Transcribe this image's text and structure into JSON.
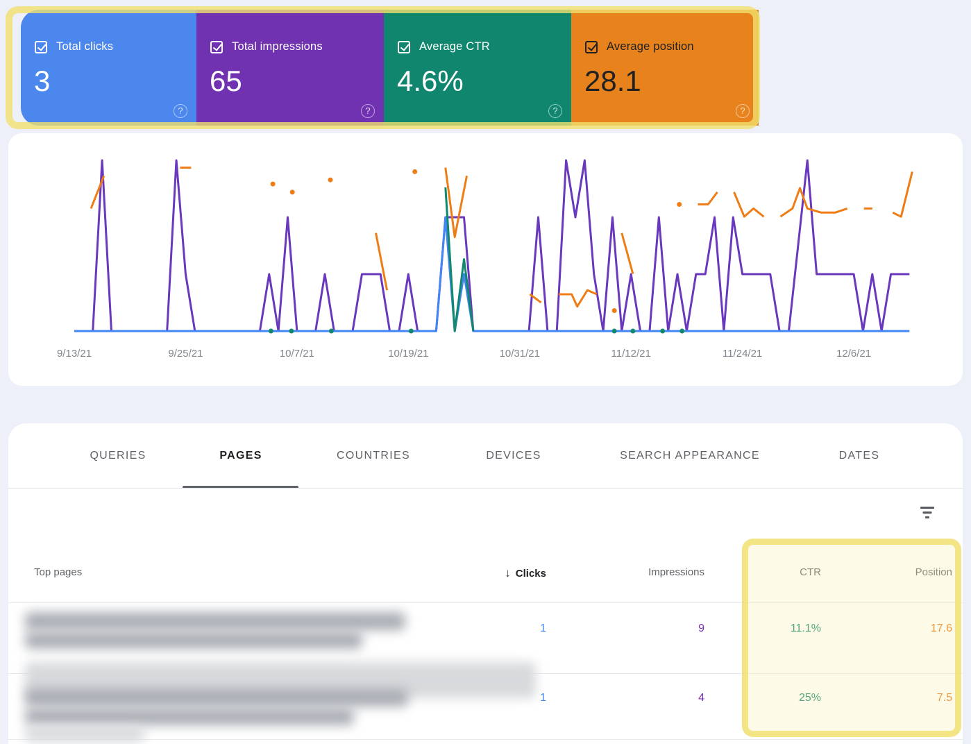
{
  "page": {
    "background": "#edeff9",
    "app": "Search Console performance report"
  },
  "icons": {
    "help_glyph": "?",
    "sort_desc_glyph": "↓"
  },
  "metric_cards": [
    {
      "label": "Total clicks",
      "value": "3",
      "color": "#4b87ec",
      "text_color": "#ffffff",
      "checked": true
    },
    {
      "label": "Total impressions",
      "value": "65",
      "color": "#7132b1",
      "text_color": "#ffffff",
      "checked": true
    },
    {
      "label": "Average CTR",
      "value": "4.6%",
      "color": "#11866f",
      "text_color": "#ffffff",
      "checked": true
    },
    {
      "label": "Average position",
      "value": "28.1",
      "color": "#e8821c",
      "text_color": "#202124",
      "checked": true
    }
  ],
  "chart_data": {
    "type": "line",
    "start_date": "9/13/21",
    "end_date": "12/12/21",
    "x_axis": {
      "tick_labels": [
        "9/13/21",
        "9/25/21",
        "10/7/21",
        "10/19/21",
        "10/31/21",
        "11/12/21",
        "11/24/21",
        "12/6/21"
      ],
      "tick_days": [
        0,
        12,
        24,
        36,
        48,
        60,
        72,
        84
      ],
      "label_color": "#80868b"
    },
    "y_axis": {
      "visible": false,
      "counts_max": 3.16,
      "ctr_max_percent": 129,
      "position_axis_inverted": true,
      "position_range": [
        1,
        45
      ]
    },
    "grid": false,
    "legend": "none",
    "series": [
      {
        "name": "Impressions",
        "color": "#6a38bd",
        "total_shown": 65,
        "points": [
          [
            0,
            0
          ],
          [
            2,
            0
          ],
          [
            3,
            3
          ],
          [
            4,
            0
          ],
          [
            10,
            0
          ],
          [
            11,
            3
          ],
          [
            12,
            1
          ],
          [
            13,
            0
          ],
          [
            20,
            0
          ],
          [
            21,
            1
          ],
          [
            22,
            0
          ],
          [
            23,
            2
          ],
          [
            24,
            0
          ],
          [
            26,
            0
          ],
          [
            27,
            1
          ],
          [
            28,
            0
          ],
          [
            30,
            0
          ],
          [
            31,
            1
          ],
          [
            33,
            1
          ],
          [
            34,
            0
          ],
          [
            35,
            0
          ],
          [
            36,
            1
          ],
          [
            37,
            0
          ],
          [
            39,
            0
          ],
          [
            40,
            2
          ],
          [
            42,
            2
          ],
          [
            43,
            0
          ],
          [
            49,
            0
          ],
          [
            50,
            2
          ],
          [
            51,
            0
          ],
          [
            52,
            0
          ],
          [
            53,
            3
          ],
          [
            54,
            2
          ],
          [
            55,
            3
          ],
          [
            56,
            1
          ],
          [
            57,
            0
          ],
          [
            58,
            2
          ],
          [
            59,
            0
          ],
          [
            60,
            1
          ],
          [
            61,
            0
          ],
          [
            62,
            0
          ],
          [
            63,
            2
          ],
          [
            64,
            0
          ],
          [
            65,
            1
          ],
          [
            66,
            0
          ],
          [
            67,
            1
          ],
          [
            68,
            1
          ],
          [
            69,
            2
          ],
          [
            70,
            0
          ],
          [
            71,
            2
          ],
          [
            72,
            1
          ],
          [
            75,
            1
          ],
          [
            76,
            0
          ],
          [
            77,
            0
          ],
          [
            79,
            3
          ],
          [
            80,
            1
          ],
          [
            84,
            1
          ],
          [
            85,
            0
          ],
          [
            86,
            1
          ],
          [
            87,
            0
          ],
          [
            88,
            1
          ],
          [
            90,
            1
          ]
        ]
      },
      {
        "name": "Clicks",
        "color": "#4285f4",
        "total_shown": 3,
        "points": [
          [
            0,
            0
          ],
          [
            39,
            0
          ],
          [
            40,
            2
          ],
          [
            41,
            0
          ],
          [
            42,
            1
          ],
          [
            43,
            0
          ],
          [
            90,
            0
          ]
        ]
      },
      {
        "name": "CTR",
        "color": "#12896f",
        "unit": "%",
        "average_shown": "4.6%",
        "segments": [
          [
            [
              40,
              100
            ],
            [
              41,
              0
            ],
            [
              42,
              50
            ],
            [
              43,
              0
            ]
          ]
        ],
        "zero_dot_days": [
          21.2,
          23.4,
          27.7,
          36.3,
          58.2,
          60.2,
          63.4,
          65.5
        ]
      },
      {
        "name": "Position",
        "color": "#ee7d16",
        "inverted_axis": true,
        "average_shown": 28.1,
        "segments": [
          [
            [
              1.8,
              15
            ],
            [
              3.2,
              7
            ]
          ],
          [
            [
              11.4,
              5
            ],
            [
              12.6,
              5
            ]
          ],
          [
            [
              32.5,
              21
            ],
            [
              33.7,
              35
            ]
          ],
          [
            [
              40,
              5
            ],
            [
              41,
              22
            ],
            [
              42.3,
              7
            ]
          ],
          [
            [
              49.1,
              36
            ],
            [
              50.3,
              38
            ]
          ],
          [
            [
              52.2,
              36
            ],
            [
              53.6,
              36
            ],
            [
              54.2,
              39
            ],
            [
              55.3,
              35
            ],
            [
              56.3,
              36
            ]
          ],
          [
            [
              59,
              21
            ],
            [
              60.2,
              31
            ]
          ],
          [
            [
              67.2,
              14
            ],
            [
              68.3,
              14
            ],
            [
              69.3,
              11
            ]
          ],
          [
            [
              71.1,
              11
            ],
            [
              72.2,
              17
            ],
            [
              73.2,
              15
            ],
            [
              74.3,
              17
            ]
          ],
          [
            [
              76.1,
              17
            ],
            [
              77.4,
              15
            ],
            [
              78.2,
              10
            ],
            [
              79,
              15
            ],
            [
              80.5,
              16
            ],
            [
              82,
              16
            ],
            [
              83.3,
              15
            ]
          ],
          [
            [
              85.1,
              15
            ],
            [
              86,
              15
            ]
          ],
          [
            [
              88.2,
              16
            ],
            [
              89.1,
              17
            ],
            [
              90.3,
              6
            ]
          ]
        ],
        "dots": [
          [
            21.4,
            9
          ],
          [
            23.5,
            11
          ],
          [
            27.6,
            8
          ],
          [
            36.7,
            6
          ],
          [
            58.2,
            40
          ],
          [
            65.2,
            14
          ]
        ]
      }
    ]
  },
  "tabs": {
    "items": [
      {
        "label": "QUERIES",
        "active": false
      },
      {
        "label": "PAGES",
        "active": true
      },
      {
        "label": "COUNTRIES",
        "active": false
      },
      {
        "label": "DEVICES",
        "active": false
      },
      {
        "label": "SEARCH APPEARANCE",
        "active": false
      },
      {
        "label": "DATES",
        "active": false
      }
    ]
  },
  "table": {
    "first_column_header": "Top pages",
    "columns": [
      "Clicks",
      "Impressions",
      "CTR",
      "Position"
    ],
    "sorted_column": "Clicks",
    "sort_direction": "descending",
    "value_colors": {
      "clicks": "#4285f4",
      "impressions": "#7b2fb3",
      "ctr": "#0d846c",
      "position": "#e8710a"
    },
    "rows": [
      {
        "page_blurred": true,
        "clicks": "1",
        "impressions": "9",
        "ctr": "11.1%",
        "position": "17.6"
      },
      {
        "page_blurred": true,
        "clicks": "1",
        "impressions": "4",
        "ctr": "25%",
        "position": "7.5"
      }
    ]
  },
  "annotations": {
    "highlight_color": "#f0e06e",
    "highlighted_regions": [
      "metric summary cards",
      "CTR and Position table columns"
    ]
  }
}
